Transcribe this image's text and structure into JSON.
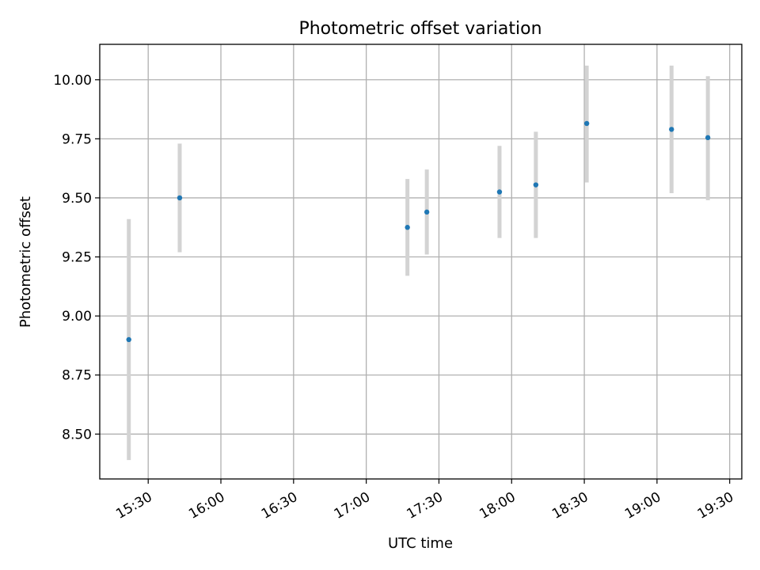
{
  "chart_data": {
    "type": "scatter",
    "title": "Photometric offset variation",
    "xlabel": "UTC time",
    "ylabel": "Photometric offset",
    "xlim": [
      "15:10",
      "19:35"
    ],
    "ylim": [
      8.31,
      10.15
    ],
    "x_ticks": [
      "15:30",
      "16:00",
      "16:30",
      "17:00",
      "17:30",
      "18:00",
      "18:30",
      "19:00",
      "19:30"
    ],
    "y_ticks": [
      "8.50",
      "8.75",
      "9.00",
      "9.25",
      "9.50",
      "9.75",
      "10.00"
    ],
    "grid": true,
    "legend": "none",
    "colors": {
      "point": "#1f77b4",
      "error_bar": "#d3d3d3",
      "grid": "#b0b0b0"
    },
    "points": [
      {
        "x": "15:22",
        "y": 8.9,
        "y_low": 8.39,
        "y_high": 9.41
      },
      {
        "x": "15:43",
        "y": 9.5,
        "y_low": 9.27,
        "y_high": 9.73
      },
      {
        "x": "17:17",
        "y": 9.375,
        "y_low": 9.17,
        "y_high": 9.58
      },
      {
        "x": "17:25",
        "y": 9.44,
        "y_low": 9.26,
        "y_high": 9.62
      },
      {
        "x": "17:55",
        "y": 9.525,
        "y_low": 9.33,
        "y_high": 9.72
      },
      {
        "x": "18:10",
        "y": 9.555,
        "y_low": 9.33,
        "y_high": 9.78
      },
      {
        "x": "18:31",
        "y": 9.815,
        "y_low": 9.565,
        "y_high": 10.06
      },
      {
        "x": "19:06",
        "y": 9.79,
        "y_low": 9.52,
        "y_high": 10.06
      },
      {
        "x": "19:21",
        "y": 9.755,
        "y_low": 9.49,
        "y_high": 10.015
      }
    ]
  }
}
